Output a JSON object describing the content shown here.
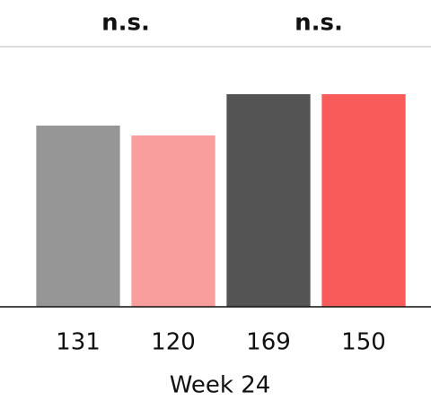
{
  "chart_data": {
    "type": "bar",
    "annotations": [
      "n.s.",
      "n.s."
    ],
    "xlabel": "Week 24",
    "categories": [
      "131",
      "120",
      "169",
      "150"
    ],
    "values": [
      202,
      191,
      237,
      237
    ],
    "colors": [
      "#969696",
      "#f99d9d",
      "#545454",
      "#f95a5a"
    ],
    "ylim": [
      0,
      290
    ]
  }
}
